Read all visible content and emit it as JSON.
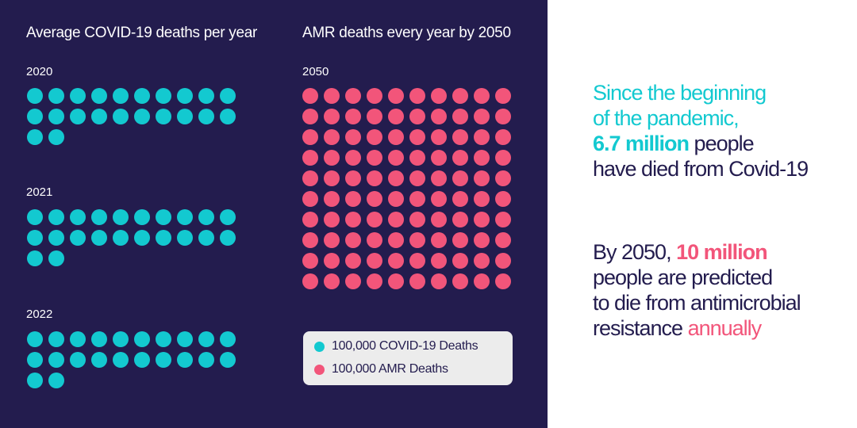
{
  "colors": {
    "background": "#231c4e",
    "covid": "#13c9d0",
    "amr": "#f2557a",
    "text_dark": "#231c4e",
    "legend_bg": "#ececec"
  },
  "chart_data": [
    {
      "type": "pictogram",
      "title": "Average COVID-19 deaths per year",
      "unit_value": 100000,
      "unit_label": "100,000 COVID-19 Deaths",
      "dots_per_row": 10,
      "categories": [
        "2020",
        "2021",
        "2022"
      ],
      "values": [
        22,
        22,
        22
      ],
      "color": "#13c9d0"
    },
    {
      "type": "pictogram",
      "title": "AMR deaths every year by 2050",
      "unit_value": 100000,
      "unit_label": "100,000 AMR Deaths",
      "dots_per_row": 10,
      "categories": [
        "2050"
      ],
      "values": [
        100
      ],
      "color": "#f2557a"
    }
  ],
  "legend": {
    "items": [
      {
        "label": "100,000 COVID-19 Deaths",
        "color": "#13c9d0"
      },
      {
        "label": "100,000 AMR Deaths",
        "color": "#f2557a"
      }
    ]
  },
  "callout_covid": {
    "line1": "Since the beginning",
    "line2": "of the pandemic,",
    "highlight": "6.7 million",
    "line3_rest": " people",
    "line4": "have died from Covid-19"
  },
  "callout_amr": {
    "line1_pre": "By 2050, ",
    "highlight": "10 million",
    "line2": "people are predicted",
    "line3": "to die from antimicrobial",
    "line4_pre": "resistance ",
    "line4_highlight": "annually"
  }
}
